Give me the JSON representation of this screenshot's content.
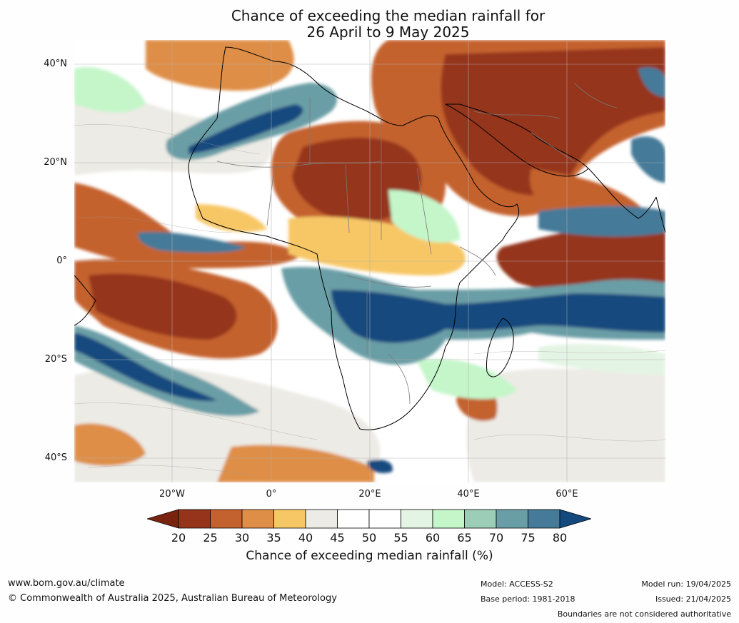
{
  "title": {
    "line1": "Chance of exceeding the median rainfall for",
    "line2": "26 April to 9 May 2025"
  },
  "map": {
    "region": "Africa, Middle East and surrounding oceans",
    "lat_ticks": [
      "40°N",
      "20°N",
      "0°",
      "20°S",
      "40°S"
    ],
    "lon_ticks": [
      "20°W",
      "0°",
      "20°E",
      "40°E",
      "60°E"
    ]
  },
  "colorbar": {
    "title": "Chance of exceeding median rainfall (%)",
    "tick_labels": [
      "20",
      "25",
      "30",
      "35",
      "40",
      "45",
      "50",
      "55",
      "60",
      "65",
      "70",
      "75",
      "80"
    ],
    "colors": {
      "below_20": "#7a2410",
      "20_25": "#95341a",
      "25_30": "#c4622f",
      "30_35": "#de8e47",
      "35_40": "#f7c766",
      "40_45": "#ecebe5",
      "45_50": "#ffffff",
      "50_55": "#ffffff",
      "55_60": "#e4f4e4",
      "60_65": "#c4f6c9",
      "65_70": "#9ccdb6",
      "70_75": "#6a9ea6",
      "75_80": "#457a98",
      "above_80": "#14497e"
    }
  },
  "footer": {
    "website": "www.bom.gov.au/climate",
    "copyright": "© Commonwealth of Australia 2025, Australian Bureau of Meteorology",
    "model": "Model: ACCESS-S2",
    "base_period": "Base period: 1981-2018",
    "model_run": "Model run: 19/04/2025",
    "issued": "Issued: 21/04/2025",
    "disclaimer": "Boundaries are not considered authoritative"
  }
}
